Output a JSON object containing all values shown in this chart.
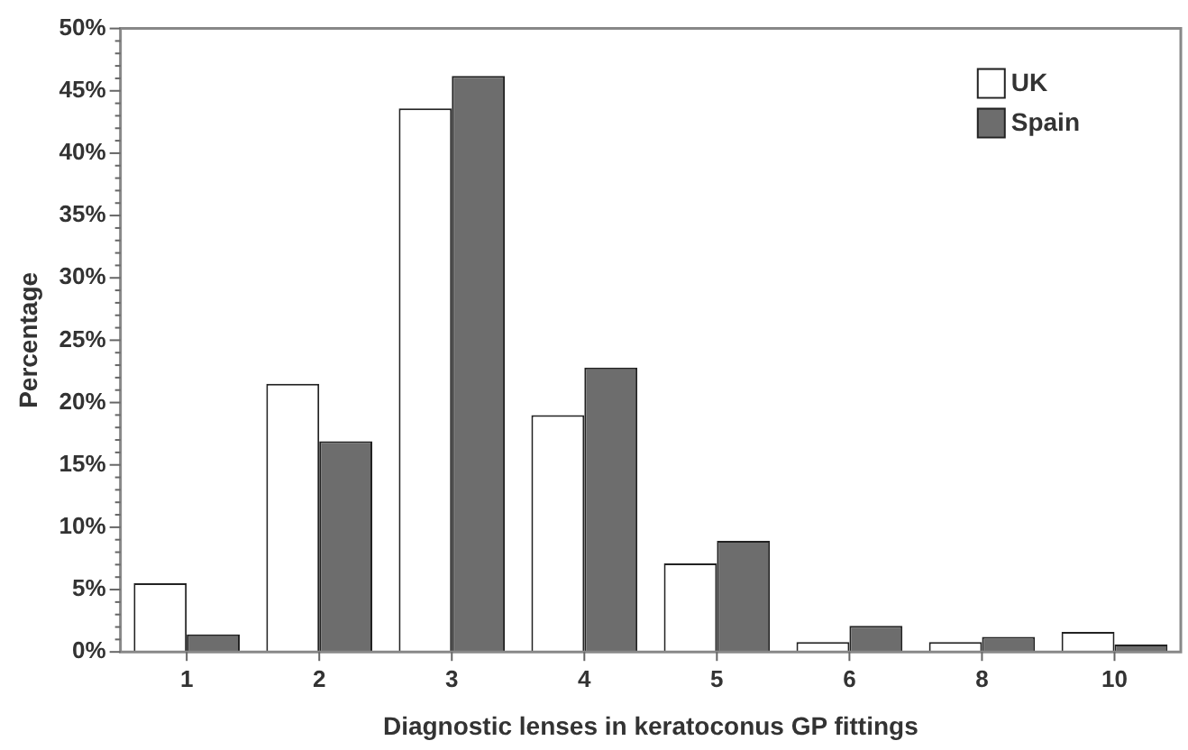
{
  "chart_data": {
    "type": "bar",
    "xlabel": "Diagnostic lenses in keratoconus GP fittings",
    "ylabel": "Percentage",
    "categories": [
      "1",
      "2",
      "3",
      "4",
      "5",
      "6",
      "8",
      "10"
    ],
    "series": [
      {
        "name": "UK",
        "color": "#ffffff",
        "values": [
          5.5,
          21.5,
          43.6,
          19.0,
          7.1,
          0.8,
          0.8,
          1.6
        ]
      },
      {
        "name": "Spain",
        "color": "#6d6d6d",
        "values": [
          1.4,
          16.9,
          46.2,
          22.8,
          8.9,
          2.1,
          1.2,
          0.6
        ]
      }
    ],
    "ylim": [
      0,
      50
    ],
    "yticks": [
      {
        "value": 0,
        "label": "0%"
      },
      {
        "value": 1,
        "label": null
      },
      {
        "value": 2,
        "label": null
      },
      {
        "value": 3,
        "label": null
      },
      {
        "value": 4,
        "label": null
      },
      {
        "value": 5,
        "label": "5%"
      },
      {
        "value": 6,
        "label": null
      },
      {
        "value": 7,
        "label": null
      },
      {
        "value": 8,
        "label": null
      },
      {
        "value": 9,
        "label": null
      },
      {
        "value": 10,
        "label": "10%"
      },
      {
        "value": 11,
        "label": null
      },
      {
        "value": 12,
        "label": null
      },
      {
        "value": 13,
        "label": null
      },
      {
        "value": 14,
        "label": null
      },
      {
        "value": 15,
        "label": "15%"
      },
      {
        "value": 16,
        "label": null
      },
      {
        "value": 17,
        "label": null
      },
      {
        "value": 18,
        "label": null
      },
      {
        "value": 19,
        "label": null
      },
      {
        "value": 20,
        "label": "20%"
      },
      {
        "value": 21,
        "label": null
      },
      {
        "value": 22,
        "label": null
      },
      {
        "value": 23,
        "label": null
      },
      {
        "value": 24,
        "label": null
      },
      {
        "value": 25,
        "label": "25%"
      },
      {
        "value": 26,
        "label": null
      },
      {
        "value": 27,
        "label": null
      },
      {
        "value": 28,
        "label": null
      },
      {
        "value": 29,
        "label": null
      },
      {
        "value": 30,
        "label": "30%"
      },
      {
        "value": 31,
        "label": null
      },
      {
        "value": 32,
        "label": null
      },
      {
        "value": 33,
        "label": null
      },
      {
        "value": 34,
        "label": null
      },
      {
        "value": 35,
        "label": "35%"
      },
      {
        "value": 36,
        "label": null
      },
      {
        "value": 37,
        "label": null
      },
      {
        "value": 38,
        "label": null
      },
      {
        "value": 39,
        "label": null
      },
      {
        "value": 40,
        "label": "40%"
      },
      {
        "value": 41,
        "label": null
      },
      {
        "value": 42,
        "label": null
      },
      {
        "value": 43,
        "label": null
      },
      {
        "value": 44,
        "label": null
      },
      {
        "value": 45,
        "label": "45%"
      },
      {
        "value": 46,
        "label": null
      },
      {
        "value": 47,
        "label": null
      },
      {
        "value": 48,
        "label": null
      },
      {
        "value": 49,
        "label": null
      },
      {
        "value": 50,
        "label": "50%"
      }
    ],
    "legend": "top right",
    "grid": false
  }
}
